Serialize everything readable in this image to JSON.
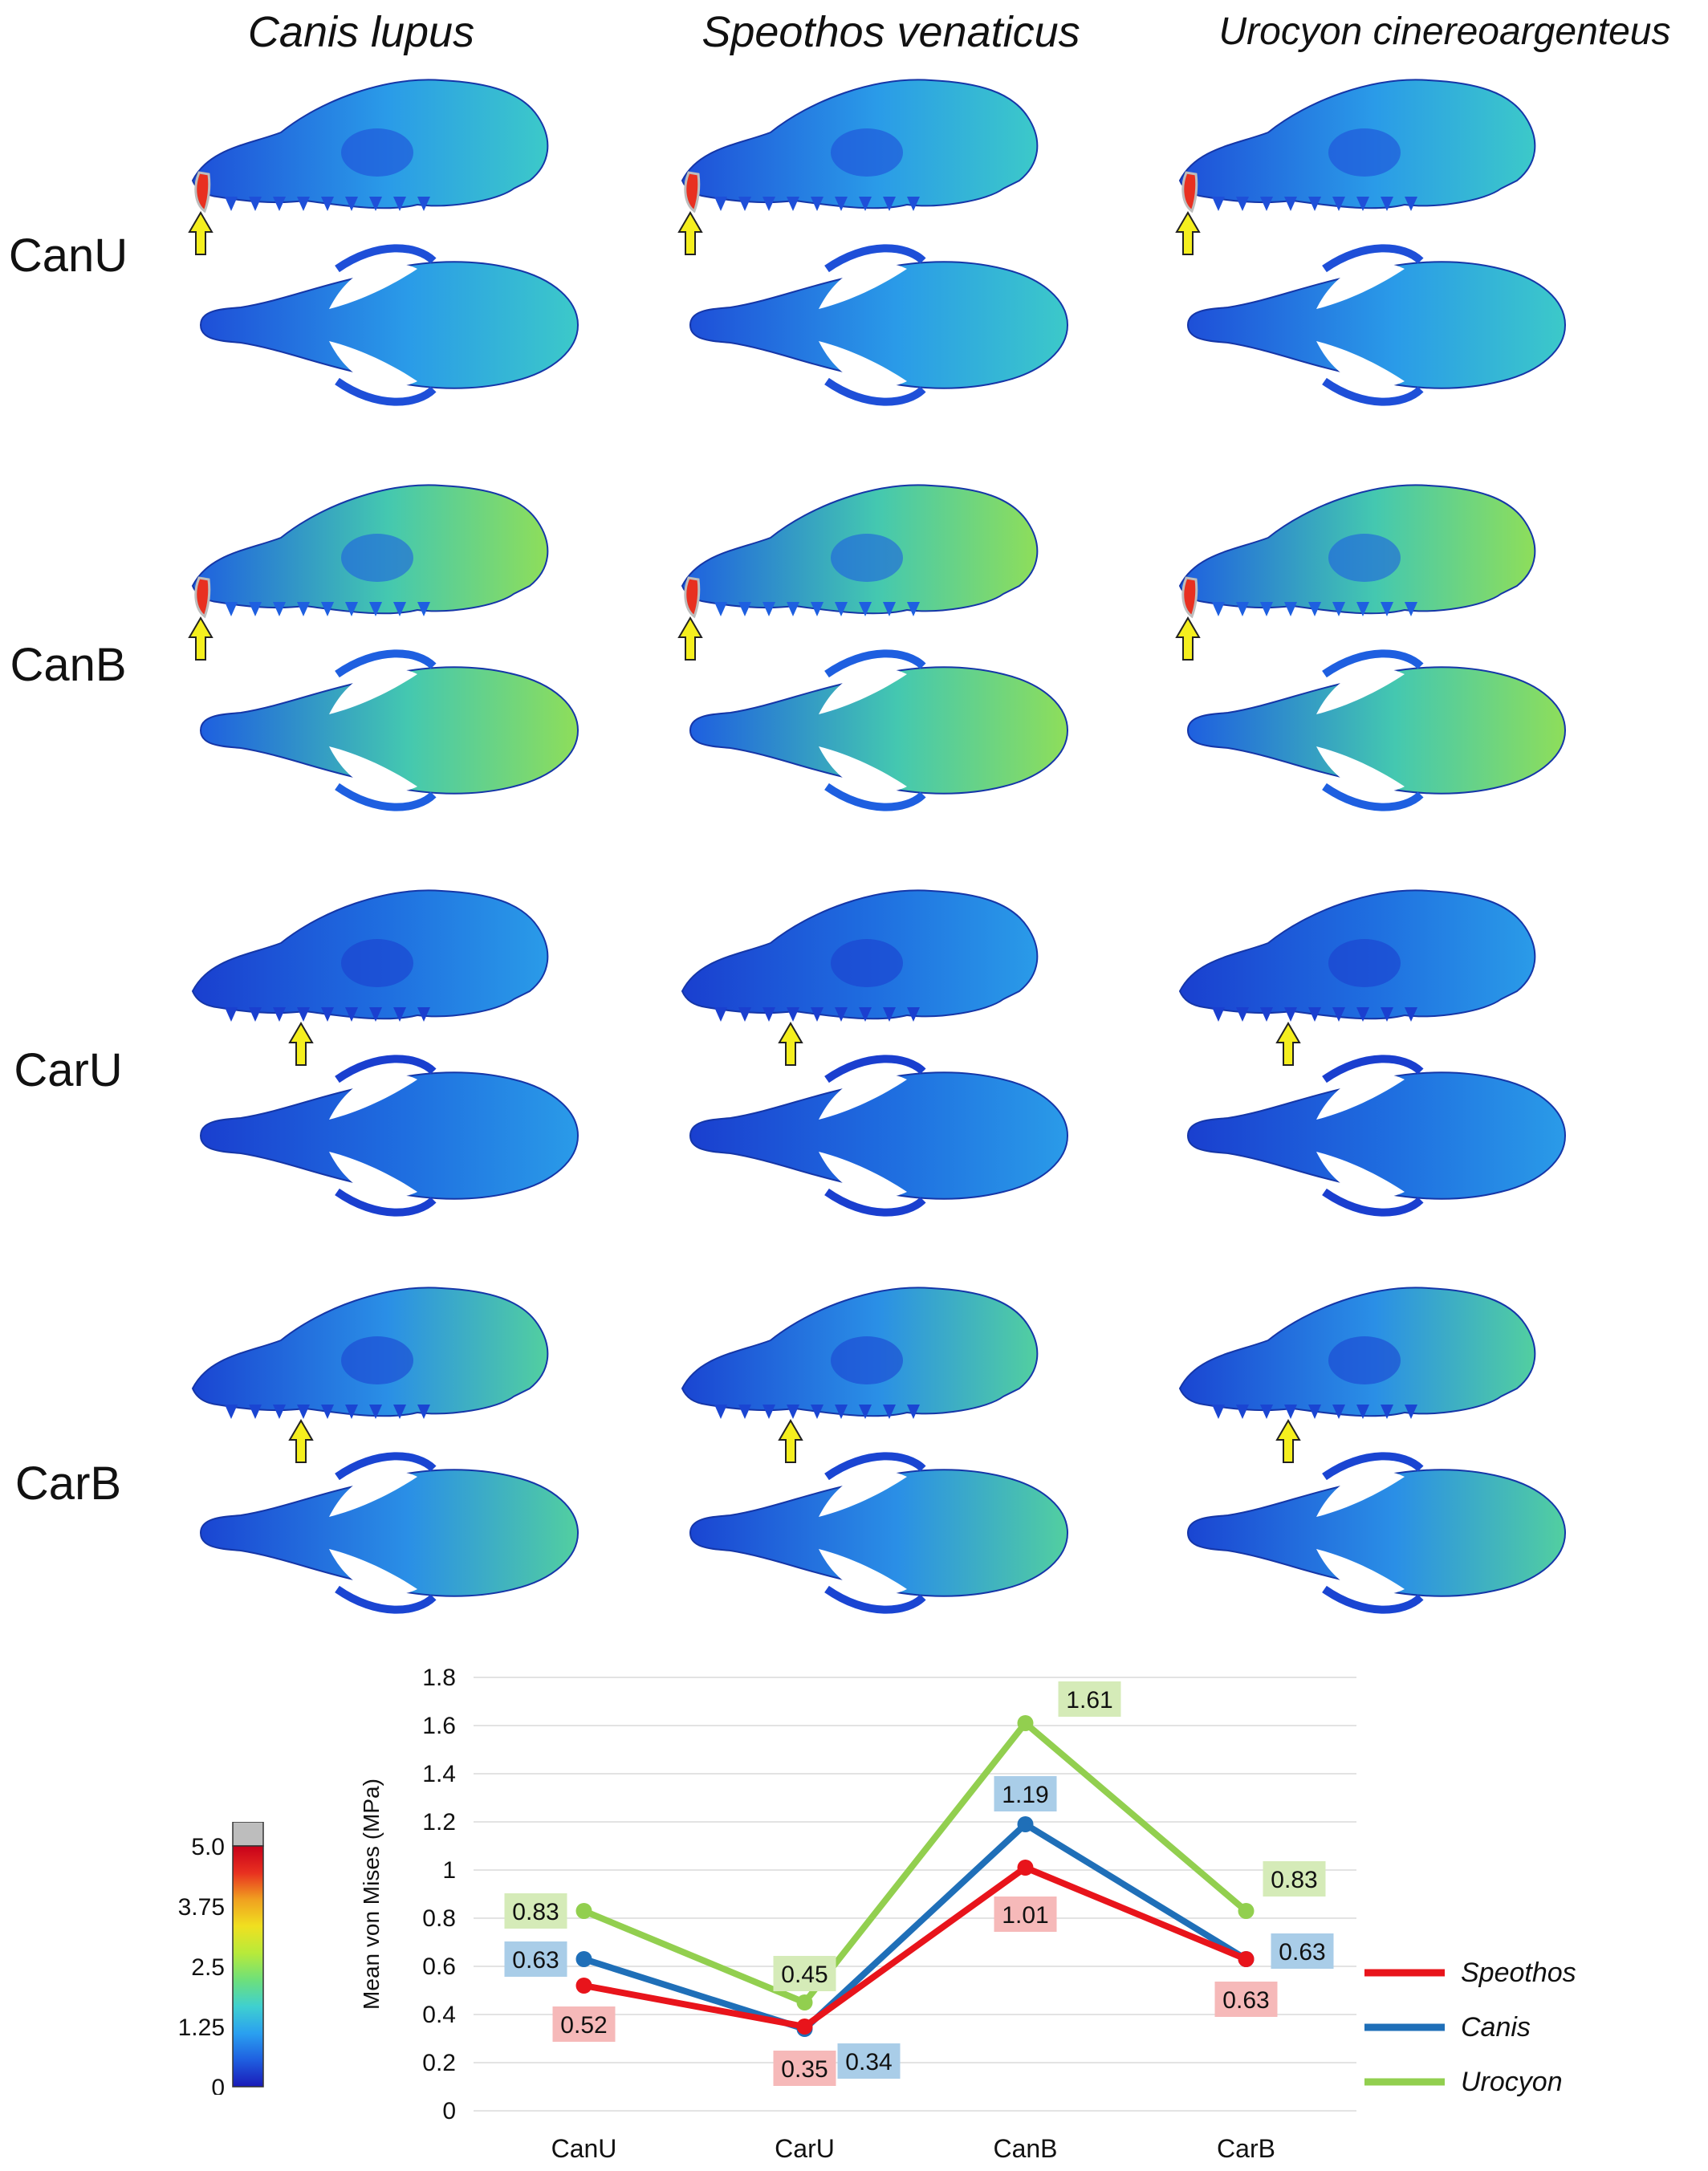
{
  "columns": [
    "Canis lupus",
    "Speothos venaticus",
    "Urocyon cinereoargenteus"
  ],
  "rows": [
    "CanU",
    "CanB",
    "CarU",
    "CarB"
  ],
  "colorbar": {
    "ticks": [
      "5.0",
      "3.75",
      "2.5",
      "1.25",
      "0"
    ],
    "colors": [
      "#1a1ab8",
      "#1f5fe0",
      "#2aa0f0",
      "#3fd0d0",
      "#6ee07a",
      "#b8ea3a",
      "#f0e020",
      "#f0a020",
      "#e83020",
      "#c8001a"
    ],
    "overflow_color": "#bdbdbd"
  },
  "chart_data": {
    "type": "line",
    "categories": [
      "CanU",
      "CarU",
      "CanB",
      "CarB"
    ],
    "ylabel": "Mean von Mises (MPa)",
    "ylim": [
      0,
      1.8
    ],
    "yticks": [
      "0",
      "0.2",
      "0.4",
      "0.6",
      "0.8",
      "1",
      "1.2",
      "1.4",
      "1.6",
      "1.8"
    ],
    "grid": true,
    "legend_position": "right",
    "series": [
      {
        "name": "Speothos",
        "color": "#e8141b",
        "label_bg": "#f6b9b9",
        "values": [
          0.52,
          0.35,
          1.01,
          0.63
        ],
        "labels": [
          "0.52",
          "0.35",
          "1.01",
          "0.63"
        ]
      },
      {
        "name": "Canis",
        "color": "#1f6fb8",
        "label_bg": "#a9cde8",
        "values": [
          0.63,
          0.34,
          1.19,
          0.63
        ],
        "labels": [
          "0.63",
          "0.34",
          "1.19",
          "0.63"
        ]
      },
      {
        "name": "Urocyon",
        "color": "#92cf4f",
        "label_bg": "#d5ebb8",
        "values": [
          0.83,
          0.45,
          1.61,
          0.83
        ],
        "labels": [
          "0.83",
          "0.45",
          "1.61",
          "0.83"
        ]
      }
    ]
  }
}
